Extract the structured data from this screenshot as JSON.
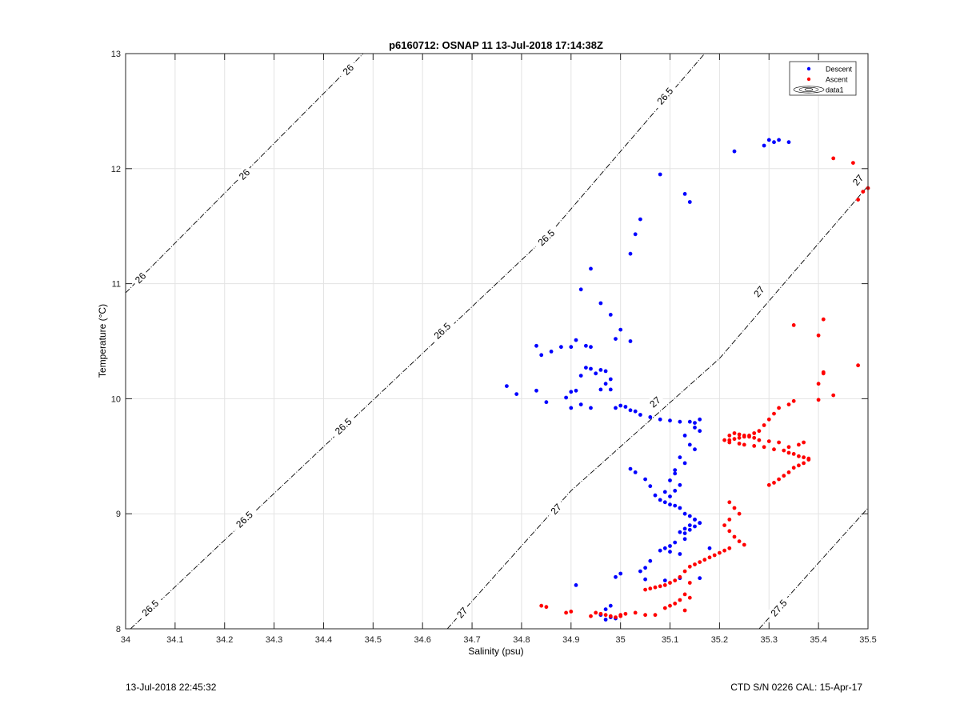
{
  "chart_data": {
    "type": "scatter",
    "title": "p6160712: OSNAP 11 13-Jul-2018 17:14:38Z",
    "xlabel": "Salinity (psu)",
    "ylabel": "Temperature (°C)",
    "xlim": [
      34,
      35.5
    ],
    "ylim": [
      8,
      13
    ],
    "grid": true,
    "x_ticks": [
      34,
      34.1,
      34.2,
      34.3,
      34.4,
      34.5,
      34.6,
      34.7,
      34.8,
      34.9,
      35,
      35.1,
      35.2,
      35.3,
      35.4,
      35.5
    ],
    "x_tick_labels": [
      "34",
      "34.1",
      "34.2",
      "34.3",
      "34.4",
      "34.5",
      "34.6",
      "34.7",
      "34.8",
      "34.9",
      "35",
      "35.1",
      "35.2",
      "35.3",
      "35.4",
      "35.5"
    ],
    "y_ticks": [
      8,
      9,
      10,
      11,
      12,
      13
    ],
    "y_tick_labels": [
      "8",
      "9",
      "10",
      "11",
      "12",
      "13"
    ],
    "legend": {
      "placement": "top-right",
      "entries": [
        "Descent",
        "Ascent",
        "data1"
      ]
    },
    "colors": {
      "descent": "#0000ff",
      "ascent": "#ff0000",
      "contour": "#000000",
      "grid": "#e3e3e3"
    },
    "contours": [
      {
        "label": "26",
        "points": [
          [
            34.0,
            10.92
          ],
          [
            34.48,
            13.0
          ]
        ],
        "label_positions": [
          [
            34.03,
            11.05
          ],
          [
            34.24,
            11.95
          ],
          [
            34.45,
            12.86
          ]
        ]
      },
      {
        "label": "26.5",
        "points": [
          [
            34.01,
            8.0
          ],
          [
            34.86,
            11.45
          ],
          [
            35.17,
            13.0
          ]
        ],
        "label_positions": [
          [
            34.05,
            8.18
          ],
          [
            34.24,
            8.95
          ],
          [
            34.44,
            9.76
          ],
          [
            34.64,
            10.59
          ],
          [
            34.85,
            11.4
          ],
          [
            35.09,
            12.63
          ]
        ]
      },
      {
        "label": "27",
        "points": [
          [
            34.65,
            8.0
          ],
          [
            34.9,
            9.2
          ],
          [
            35.2,
            10.35
          ],
          [
            35.5,
            11.85
          ]
        ],
        "label_positions": [
          [
            34.68,
            8.14
          ],
          [
            34.87,
            9.04
          ],
          [
            35.07,
            9.97
          ],
          [
            35.28,
            10.93
          ],
          [
            35.48,
            11.9
          ]
        ]
      },
      {
        "label": "27.5",
        "points": [
          [
            35.28,
            8.0
          ],
          [
            35.5,
            9.05
          ]
        ],
        "label_positions": [
          [
            35.32,
            8.18
          ]
        ]
      }
    ],
    "series": [
      {
        "name": "Descent",
        "color": "#0000ff",
        "x": [
          35.3,
          35.31,
          35.32,
          35.29,
          35.34,
          35.23,
          35.08,
          35.13,
          35.14,
          35.04,
          35.03,
          35.02,
          34.94,
          34.92,
          34.96,
          34.98,
          35.0,
          34.99,
          35.02,
          34.91,
          34.9,
          34.83,
          34.86,
          34.88,
          34.84,
          34.93,
          34.94,
          34.77,
          34.79,
          34.83,
          34.85,
          34.89,
          34.91,
          34.9,
          34.92,
          34.93,
          34.94,
          34.95,
          34.96,
          34.97,
          34.98,
          34.92,
          34.9,
          34.94,
          34.96,
          34.97,
          34.98,
          34.99,
          35.0,
          35.01,
          35.02,
          35.03,
          35.04,
          35.06,
          35.08,
          35.1,
          35.12,
          35.14,
          35.15,
          35.16,
          35.16,
          35.15,
          35.13,
          35.14,
          35.15,
          35.12,
          35.13,
          35.11,
          35.11,
          35.1,
          35.12,
          35.11,
          35.09,
          35.02,
          35.03,
          35.05,
          35.06,
          35.07,
          35.08,
          35.09,
          35.1,
          35.11,
          35.12,
          35.13,
          35.14,
          35.15,
          35.16,
          35.14,
          35.13,
          35.12,
          35.13,
          35.14,
          35.15,
          35.16,
          35.15,
          35.13,
          35.11,
          35.1,
          35.09,
          35.08,
          35.1,
          35.12,
          35.06,
          35.05,
          35.04,
          35.05,
          35.09,
          35.12,
          35.16,
          35.18,
          35.0,
          34.99,
          34.98,
          34.97,
          34.96,
          34.98,
          34.99,
          34.97,
          34.91,
          35.1
        ],
        "y": [
          12.25,
          12.23,
          12.25,
          12.2,
          12.23,
          12.15,
          11.95,
          11.78,
          11.71,
          11.56,
          11.43,
          11.26,
          11.13,
          10.95,
          10.83,
          10.73,
          10.6,
          10.52,
          10.5,
          10.51,
          10.45,
          10.46,
          10.41,
          10.45,
          10.38,
          10.46,
          10.45,
          10.11,
          10.04,
          10.07,
          9.97,
          10.01,
          10.07,
          10.06,
          10.2,
          10.27,
          10.26,
          10.22,
          10.25,
          10.24,
          10.17,
          9.95,
          9.92,
          9.92,
          10.08,
          10.13,
          10.08,
          9.92,
          9.94,
          9.93,
          9.9,
          9.89,
          9.86,
          9.84,
          9.82,
          9.81,
          9.8,
          9.8,
          9.79,
          9.82,
          9.72,
          9.75,
          9.68,
          9.6,
          9.56,
          9.49,
          9.44,
          9.38,
          9.35,
          9.29,
          9.25,
          9.2,
          9.19,
          9.39,
          9.36,
          9.3,
          9.24,
          9.16,
          9.12,
          9.1,
          9.08,
          9.07,
          9.05,
          9.0,
          8.98,
          8.95,
          8.92,
          8.9,
          8.87,
          8.84,
          8.83,
          8.86,
          8.89,
          8.92,
          8.95,
          8.78,
          8.75,
          8.72,
          8.7,
          8.68,
          8.67,
          8.65,
          8.59,
          8.53,
          8.5,
          8.43,
          8.42,
          8.44,
          8.44,
          8.7,
          8.48,
          8.45,
          8.2,
          8.17,
          8.12,
          8.1,
          8.09,
          8.08,
          8.38,
          9.15
        ]
      },
      {
        "name": "Ascent",
        "color": "#ff0000",
        "x": [
          35.43,
          35.47,
          35.49,
          35.48,
          35.5,
          35.4,
          35.41,
          35.35,
          35.4,
          35.41,
          35.43,
          35.48,
          35.4,
          35.41,
          35.35,
          35.34,
          35.32,
          35.31,
          35.3,
          35.29,
          35.28,
          35.27,
          35.26,
          35.25,
          35.24,
          35.23,
          35.22,
          35.21,
          35.22,
          35.24,
          35.25,
          35.27,
          35.29,
          35.31,
          35.33,
          35.34,
          35.35,
          35.36,
          35.37,
          35.38,
          35.37,
          35.36,
          35.35,
          35.34,
          35.33,
          35.32,
          35.31,
          35.3,
          35.38,
          35.37,
          35.36,
          35.34,
          35.32,
          35.3,
          35.28,
          35.27,
          35.26,
          35.25,
          35.24,
          35.23,
          35.22,
          35.22,
          35.23,
          35.24,
          35.22,
          35.21,
          35.22,
          35.23,
          35.24,
          35.25,
          35.22,
          35.21,
          35.2,
          35.19,
          35.18,
          35.17,
          35.16,
          35.15,
          35.14,
          35.13,
          35.12,
          35.11,
          35.1,
          35.09,
          35.08,
          35.07,
          35.06,
          35.05,
          35.13,
          35.14,
          35.12,
          35.11,
          35.1,
          35.09,
          35.05,
          35.03,
          35.01,
          35.0,
          34.99,
          34.98,
          34.97,
          34.96,
          34.95,
          34.94,
          34.9,
          34.89,
          34.85,
          34.84,
          35.0,
          35.07,
          35.13,
          35.14
        ],
        "y": [
          12.09,
          12.05,
          11.8,
          11.73,
          11.83,
          10.55,
          10.69,
          10.64,
          10.13,
          10.23,
          10.03,
          10.29,
          9.99,
          10.22,
          9.98,
          9.95,
          9.92,
          9.87,
          9.82,
          9.77,
          9.72,
          9.7,
          9.68,
          9.67,
          9.66,
          9.65,
          9.64,
          9.64,
          9.62,
          9.61,
          9.6,
          9.59,
          9.58,
          9.56,
          9.55,
          9.53,
          9.52,
          9.5,
          9.49,
          9.47,
          9.44,
          9.42,
          9.4,
          9.36,
          9.33,
          9.3,
          9.27,
          9.25,
          9.48,
          9.62,
          9.6,
          9.58,
          9.62,
          9.63,
          9.64,
          9.66,
          9.67,
          9.68,
          9.69,
          9.7,
          9.68,
          9.1,
          9.05,
          9.0,
          8.95,
          8.9,
          8.85,
          8.8,
          8.76,
          8.73,
          8.7,
          8.68,
          8.66,
          8.64,
          8.62,
          8.6,
          8.58,
          8.56,
          8.54,
          8.5,
          8.45,
          8.42,
          8.4,
          8.38,
          8.37,
          8.36,
          8.35,
          8.34,
          8.3,
          8.27,
          8.25,
          8.22,
          8.2,
          8.18,
          8.12,
          8.14,
          8.13,
          8.12,
          8.1,
          8.11,
          8.12,
          8.13,
          8.14,
          8.11,
          8.15,
          8.14,
          8.19,
          8.2,
          8.11,
          8.12,
          8.16,
          8.4
        ]
      }
    ]
  },
  "footer": {
    "left": "13-Jul-2018 22:45:32",
    "right": "CTD S/N 0226  CAL: 15-Apr-17"
  }
}
